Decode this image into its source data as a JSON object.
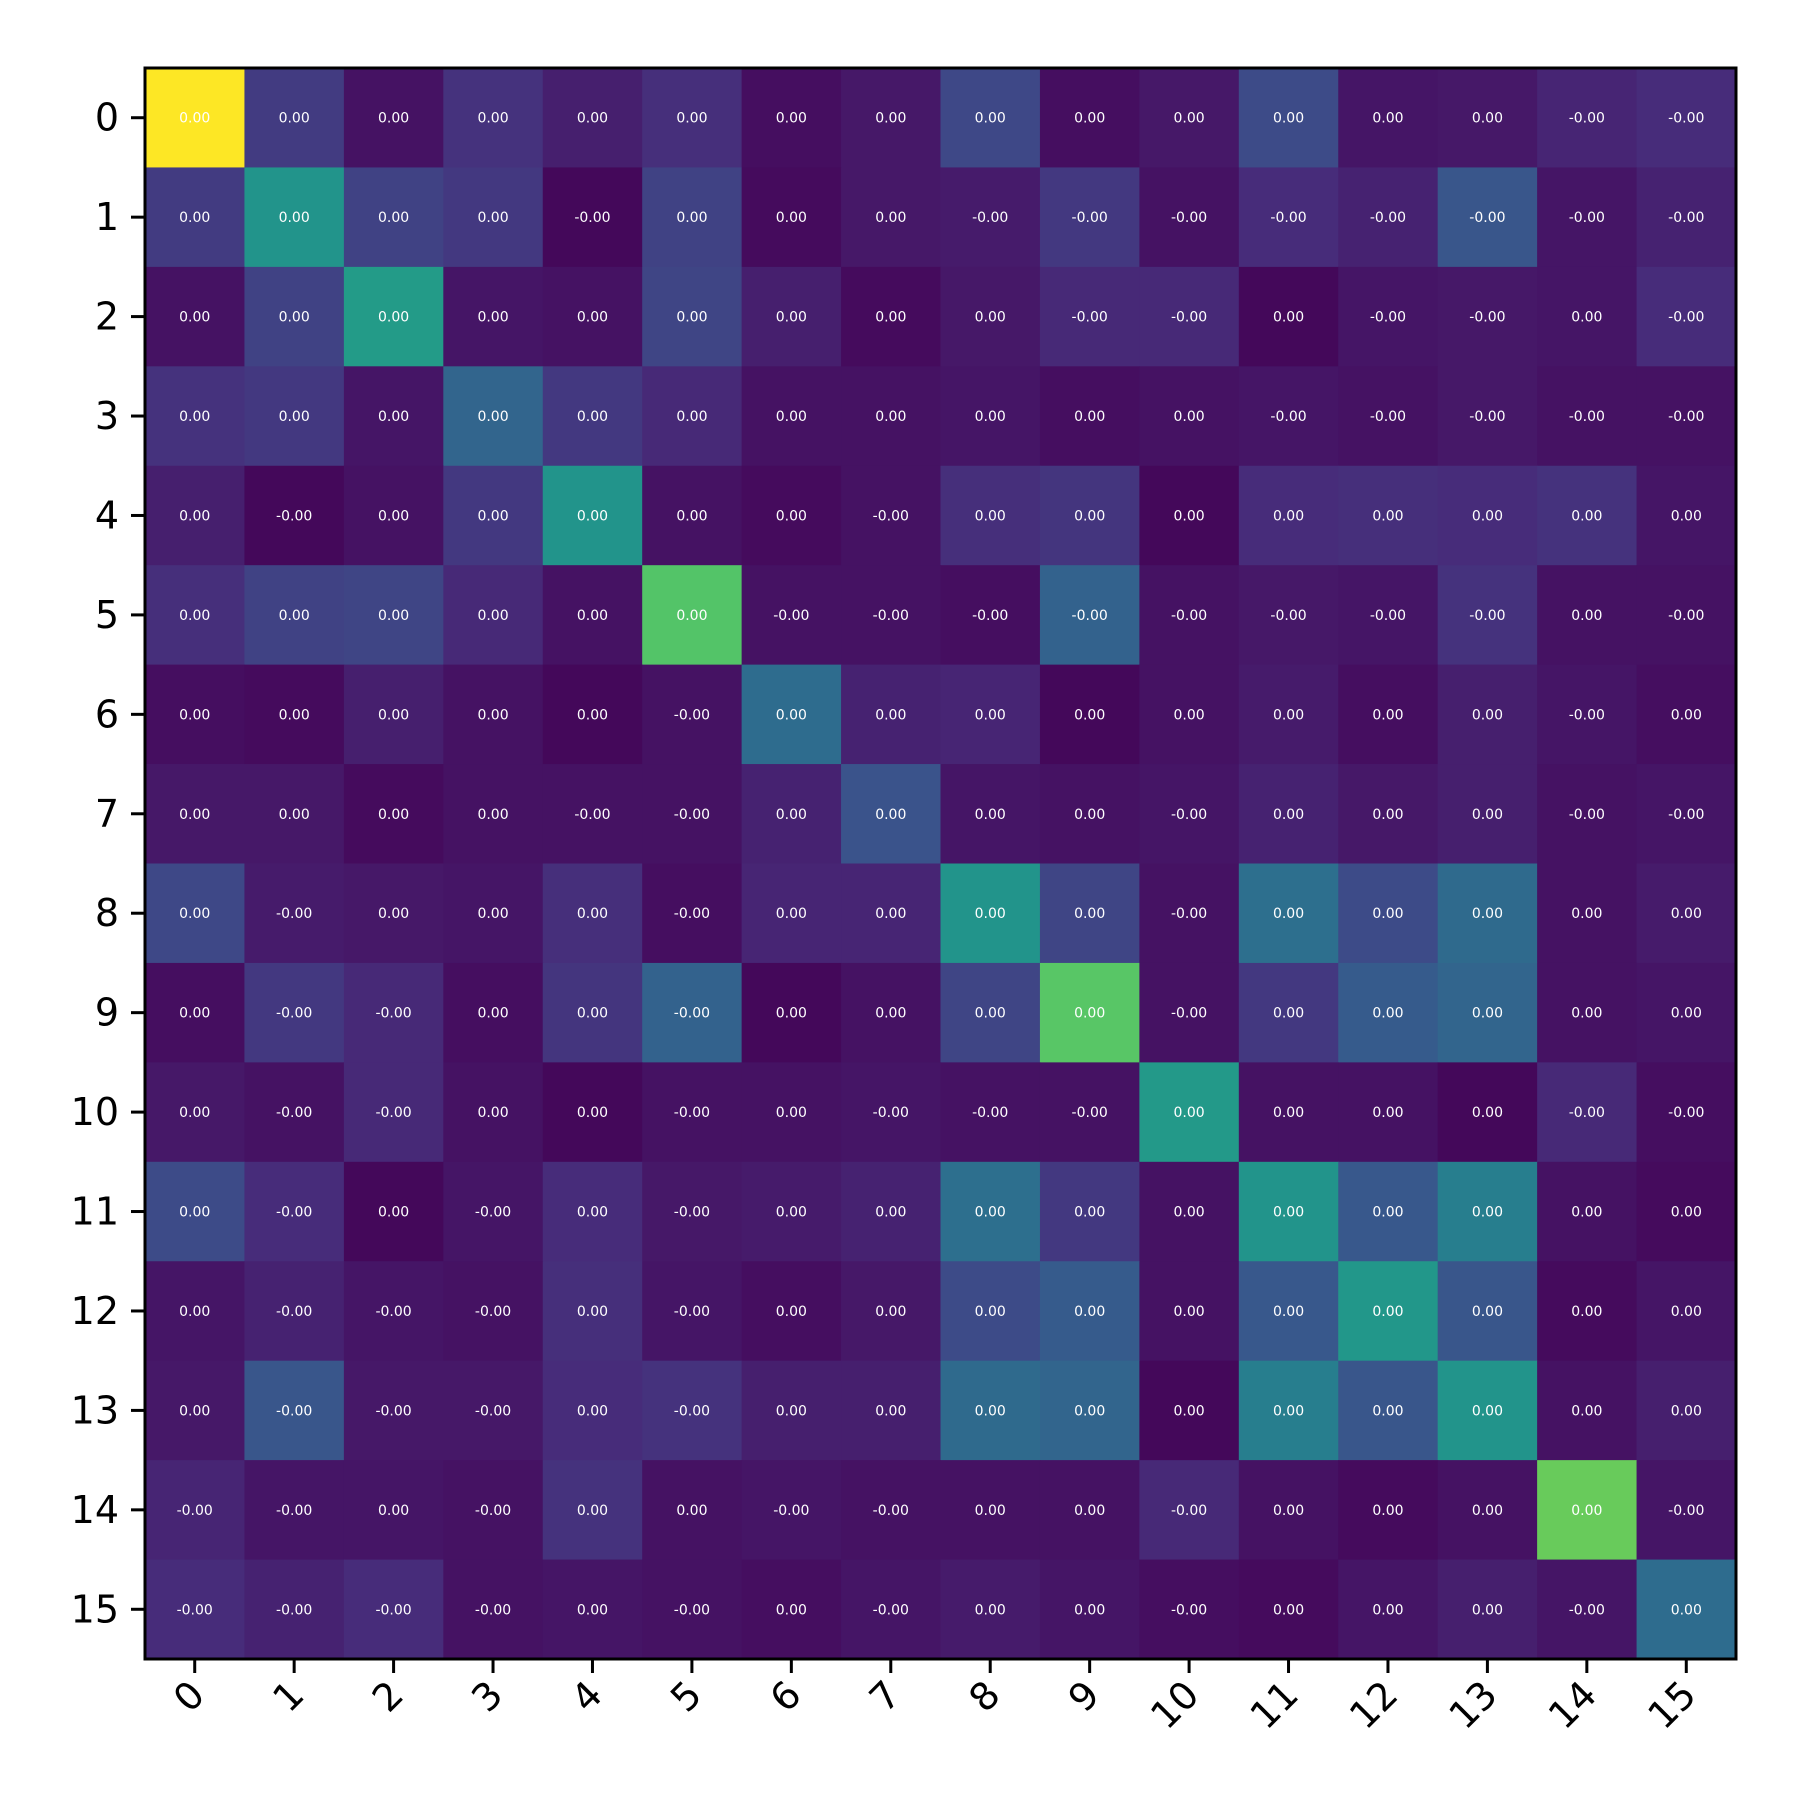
{
  "chart_data": {
    "type": "heatmap",
    "title": "",
    "xlabel": "",
    "ylabel": "",
    "colormap": "viridis",
    "x_tick_labels": [
      "0",
      "1",
      "2",
      "3",
      "4",
      "5",
      "6",
      "7",
      "8",
      "9",
      "10",
      "11",
      "12",
      "13",
      "14",
      "15"
    ],
    "y_tick_labels": [
      "0",
      "1",
      "2",
      "3",
      "4",
      "5",
      "6",
      "7",
      "8",
      "9",
      "10",
      "11",
      "12",
      "13",
      "14",
      "15"
    ],
    "intensity": [
      [
        1.0,
        0.18,
        0.05,
        0.15,
        0.09,
        0.14,
        0.04,
        0.07,
        0.22,
        0.04,
        0.07,
        0.23,
        0.06,
        0.07,
        0.11,
        0.13
      ],
      [
        0.18,
        0.52,
        0.2,
        0.17,
        0.02,
        0.2,
        0.03,
        0.07,
        0.08,
        0.17,
        0.05,
        0.13,
        0.1,
        0.27,
        0.06,
        0.1
      ],
      [
        0.05,
        0.2,
        0.55,
        0.06,
        0.05,
        0.21,
        0.09,
        0.03,
        0.07,
        0.12,
        0.12,
        0.02,
        0.06,
        0.07,
        0.06,
        0.13
      ],
      [
        0.15,
        0.17,
        0.06,
        0.33,
        0.17,
        0.12,
        0.05,
        0.05,
        0.06,
        0.04,
        0.05,
        0.06,
        0.05,
        0.07,
        0.05,
        0.05
      ],
      [
        0.09,
        0.02,
        0.05,
        0.17,
        0.52,
        0.05,
        0.03,
        0.05,
        0.14,
        0.16,
        0.02,
        0.13,
        0.14,
        0.13,
        0.15,
        0.06
      ],
      [
        0.14,
        0.2,
        0.21,
        0.12,
        0.05,
        0.73,
        0.05,
        0.05,
        0.04,
        0.32,
        0.05,
        0.07,
        0.06,
        0.15,
        0.05,
        0.05
      ],
      [
        0.04,
        0.03,
        0.09,
        0.05,
        0.02,
        0.05,
        0.36,
        0.1,
        0.11,
        0.02,
        0.05,
        0.08,
        0.04,
        0.09,
        0.06,
        0.04
      ],
      [
        0.07,
        0.07,
        0.03,
        0.05,
        0.05,
        0.05,
        0.1,
        0.26,
        0.06,
        0.05,
        0.06,
        0.1,
        0.07,
        0.09,
        0.05,
        0.06
      ],
      [
        0.22,
        0.08,
        0.07,
        0.06,
        0.14,
        0.04,
        0.11,
        0.11,
        0.52,
        0.21,
        0.05,
        0.37,
        0.23,
        0.35,
        0.05,
        0.08
      ],
      [
        0.04,
        0.17,
        0.12,
        0.04,
        0.16,
        0.32,
        0.02,
        0.05,
        0.21,
        0.74,
        0.05,
        0.17,
        0.29,
        0.33,
        0.05,
        0.06
      ],
      [
        0.07,
        0.05,
        0.12,
        0.05,
        0.02,
        0.05,
        0.05,
        0.06,
        0.05,
        0.05,
        0.54,
        0.05,
        0.05,
        0.02,
        0.12,
        0.04
      ],
      [
        0.23,
        0.13,
        0.02,
        0.06,
        0.13,
        0.07,
        0.08,
        0.1,
        0.37,
        0.17,
        0.05,
        0.52,
        0.28,
        0.43,
        0.05,
        0.03
      ],
      [
        0.06,
        0.1,
        0.06,
        0.05,
        0.14,
        0.06,
        0.04,
        0.07,
        0.23,
        0.29,
        0.05,
        0.28,
        0.53,
        0.27,
        0.03,
        0.06
      ],
      [
        0.07,
        0.27,
        0.07,
        0.07,
        0.13,
        0.15,
        0.09,
        0.09,
        0.35,
        0.33,
        0.02,
        0.43,
        0.27,
        0.52,
        0.05,
        0.09
      ],
      [
        0.11,
        0.06,
        0.06,
        0.05,
        0.15,
        0.05,
        0.06,
        0.05,
        0.05,
        0.05,
        0.12,
        0.05,
        0.03,
        0.05,
        0.77,
        0.06
      ],
      [
        0.13,
        0.1,
        0.13,
        0.05,
        0.06,
        0.05,
        0.04,
        0.06,
        0.08,
        0.06,
        0.04,
        0.03,
        0.06,
        0.09,
        0.06,
        0.36
      ]
    ],
    "cell_labels": [
      [
        "0.00",
        "0.00",
        "0.00",
        "0.00",
        "0.00",
        "0.00",
        "0.00",
        "0.00",
        "0.00",
        "0.00",
        "0.00",
        "0.00",
        "0.00",
        "0.00",
        "-0.00",
        "-0.00"
      ],
      [
        "0.00",
        "0.00",
        "0.00",
        "0.00",
        "-0.00",
        "0.00",
        "0.00",
        "0.00",
        "-0.00",
        "-0.00",
        "-0.00",
        "-0.00",
        "-0.00",
        "-0.00",
        "-0.00",
        "-0.00"
      ],
      [
        "0.00",
        "0.00",
        "0.00",
        "0.00",
        "0.00",
        "0.00",
        "0.00",
        "0.00",
        "0.00",
        "-0.00",
        "-0.00",
        "0.00",
        "-0.00",
        "-0.00",
        "0.00",
        "-0.00"
      ],
      [
        "0.00",
        "0.00",
        "0.00",
        "0.00",
        "0.00",
        "0.00",
        "0.00",
        "0.00",
        "0.00",
        "0.00",
        "0.00",
        "-0.00",
        "-0.00",
        "-0.00",
        "-0.00",
        "-0.00"
      ],
      [
        "0.00",
        "-0.00",
        "0.00",
        "0.00",
        "0.00",
        "0.00",
        "0.00",
        "-0.00",
        "0.00",
        "0.00",
        "0.00",
        "0.00",
        "0.00",
        "0.00",
        "0.00",
        "0.00"
      ],
      [
        "0.00",
        "0.00",
        "0.00",
        "0.00",
        "0.00",
        "0.00",
        "-0.00",
        "-0.00",
        "-0.00",
        "-0.00",
        "-0.00",
        "-0.00",
        "-0.00",
        "-0.00",
        "0.00",
        "-0.00"
      ],
      [
        "0.00",
        "0.00",
        "0.00",
        "0.00",
        "0.00",
        "-0.00",
        "0.00",
        "0.00",
        "0.00",
        "0.00",
        "0.00",
        "0.00",
        "0.00",
        "0.00",
        "-0.00",
        "0.00"
      ],
      [
        "0.00",
        "0.00",
        "0.00",
        "0.00",
        "-0.00",
        "-0.00",
        "0.00",
        "0.00",
        "0.00",
        "0.00",
        "-0.00",
        "0.00",
        "0.00",
        "0.00",
        "-0.00",
        "-0.00"
      ],
      [
        "0.00",
        "-0.00",
        "0.00",
        "0.00",
        "0.00",
        "-0.00",
        "0.00",
        "0.00",
        "0.00",
        "0.00",
        "-0.00",
        "0.00",
        "0.00",
        "0.00",
        "0.00",
        "0.00"
      ],
      [
        "0.00",
        "-0.00",
        "-0.00",
        "0.00",
        "0.00",
        "-0.00",
        "0.00",
        "0.00",
        "0.00",
        "0.00",
        "-0.00",
        "0.00",
        "0.00",
        "0.00",
        "0.00",
        "0.00"
      ],
      [
        "0.00",
        "-0.00",
        "-0.00",
        "0.00",
        "0.00",
        "-0.00",
        "0.00",
        "-0.00",
        "-0.00",
        "-0.00",
        "0.00",
        "0.00",
        "0.00",
        "0.00",
        "-0.00",
        "-0.00"
      ],
      [
        "0.00",
        "-0.00",
        "0.00",
        "-0.00",
        "0.00",
        "-0.00",
        "0.00",
        "0.00",
        "0.00",
        "0.00",
        "0.00",
        "0.00",
        "0.00",
        "0.00",
        "0.00",
        "0.00"
      ],
      [
        "0.00",
        "-0.00",
        "-0.00",
        "-0.00",
        "0.00",
        "-0.00",
        "0.00",
        "0.00",
        "0.00",
        "0.00",
        "0.00",
        "0.00",
        "0.00",
        "0.00",
        "0.00",
        "0.00"
      ],
      [
        "0.00",
        "-0.00",
        "-0.00",
        "-0.00",
        "0.00",
        "-0.00",
        "0.00",
        "0.00",
        "0.00",
        "0.00",
        "0.00",
        "0.00",
        "0.00",
        "0.00",
        "0.00",
        "0.00"
      ],
      [
        "-0.00",
        "-0.00",
        "0.00",
        "-0.00",
        "0.00",
        "0.00",
        "-0.00",
        "-0.00",
        "0.00",
        "0.00",
        "-0.00",
        "0.00",
        "0.00",
        "0.00",
        "0.00",
        "-0.00"
      ],
      [
        "-0.00",
        "-0.00",
        "-0.00",
        "-0.00",
        "0.00",
        "-0.00",
        "0.00",
        "-0.00",
        "0.00",
        "0.00",
        "-0.00",
        "0.00",
        "0.00",
        "0.00",
        "-0.00",
        "0.00"
      ]
    ],
    "grid": false,
    "colorbar": false,
    "legend": "none"
  }
}
